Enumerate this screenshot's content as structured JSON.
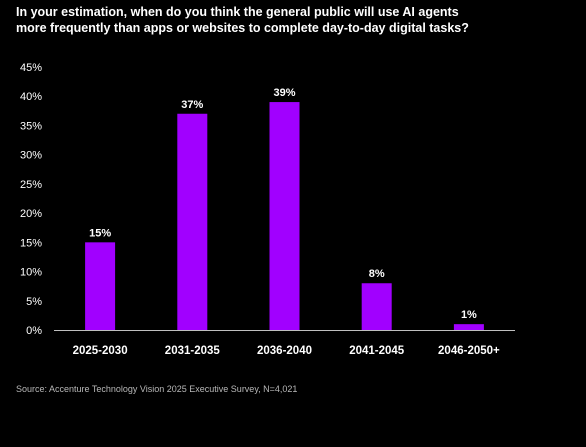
{
  "title_lines": [
    "In your estimation, when do you think the general public will use AI agents",
    "more frequently than apps or websites to complete day-to-day digital tasks?"
  ],
  "source": "Source: Accenture Technology Vision 2025 Executive Survey, N=4,021",
  "colors": {
    "bar": "#A100FF",
    "background": "#000000",
    "text": "#FFFFFF",
    "axis": "#BFBFBF"
  },
  "chart_data": {
    "type": "bar",
    "title": "In your estimation, when do you think the general public will use AI agents more frequently than apps or websites to complete day-to-day digital tasks?",
    "categories": [
      "2025-2030",
      "2031-2035",
      "2036-2040",
      "2041-2045",
      "2046-2050+"
    ],
    "values": [
      15,
      37,
      39,
      8,
      1
    ],
    "data_labels": [
      "15%",
      "37%",
      "39%",
      "8%",
      "1%"
    ],
    "yticks": [
      "0%",
      "5%",
      "10%",
      "15%",
      "20%",
      "25%",
      "30%",
      "35%",
      "40%",
      "45%"
    ],
    "ylim": [
      0,
      45
    ],
    "xlabel": "",
    "ylabel": "",
    "grid": false,
    "legend": "none"
  }
}
